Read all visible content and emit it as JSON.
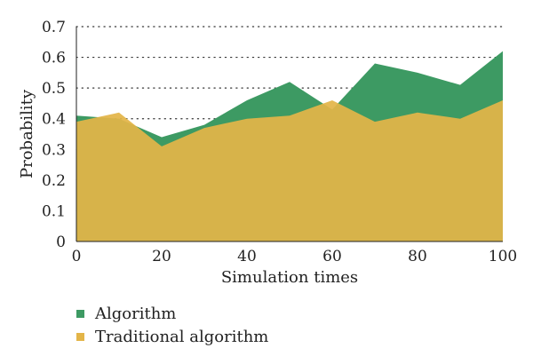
{
  "chart_data": {
    "type": "area",
    "x": [
      0,
      10,
      20,
      30,
      40,
      50,
      60,
      70,
      80,
      90,
      100
    ],
    "series": [
      {
        "name": "Algorithm",
        "color": "#3d9a63",
        "values": [
          0.41,
          0.4,
          0.34,
          0.38,
          0.46,
          0.52,
          0.43,
          0.58,
          0.55,
          0.51,
          0.62
        ]
      },
      {
        "name": "Traditional algorithm",
        "color": "#e3b548",
        "values": [
          0.39,
          0.42,
          0.31,
          0.37,
          0.4,
          0.41,
          0.46,
          0.39,
          0.42,
          0.4,
          0.46
        ]
      }
    ],
    "xlabel": "Simulation times",
    "ylabel": "Probability",
    "xlim": [
      0,
      100
    ],
    "ylim": [
      0,
      0.7
    ],
    "xticks": [
      "0",
      "20",
      "40",
      "60",
      "80",
      "100"
    ],
    "yticks": [
      "0",
      "0.1",
      "0.2",
      "0.3",
      "0.4",
      "0.5",
      "0.6",
      "0.7"
    ],
    "grid": "horizontal dotted",
    "legend_position": "bottom-left"
  }
}
